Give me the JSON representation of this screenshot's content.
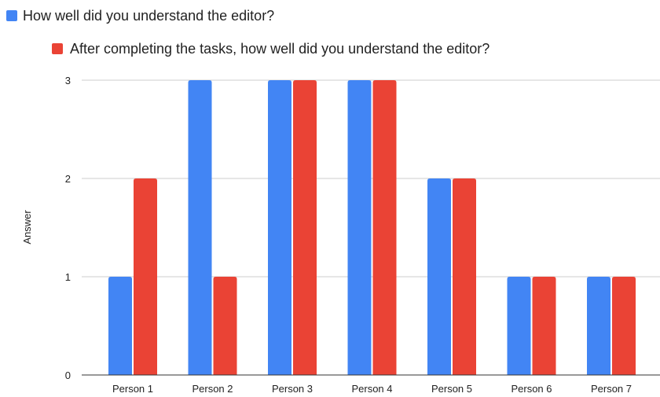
{
  "chart_data": {
    "type": "bar",
    "categories": [
      "Person 1",
      "Person 2",
      "Person 3",
      "Person 4",
      "Person 5",
      "Person 6",
      "Person 7"
    ],
    "series": [
      {
        "name": "How well did you understand the editor?",
        "color": "#4285F4",
        "values": [
          1,
          3,
          3,
          3,
          2,
          1,
          1
        ]
      },
      {
        "name": "After completing the tasks, how well did you understand the editor?",
        "color": "#EA4335",
        "values": [
          2,
          1,
          3,
          3,
          2,
          1,
          1
        ]
      }
    ],
    "title": "",
    "xlabel": "",
    "ylabel": "Answer",
    "ylim": [
      0,
      3
    ],
    "yticks": [
      0,
      1,
      2,
      3
    ],
    "grid": true,
    "legend_position": "top-left"
  }
}
